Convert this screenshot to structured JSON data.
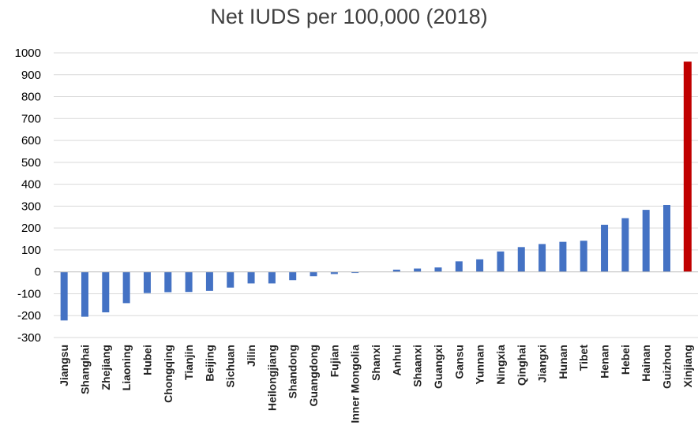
{
  "chart_data": {
    "type": "bar",
    "title": "Net IUDS per 100,000 (2018)",
    "xlabel": "",
    "ylabel": "",
    "ylim": [
      -300,
      1000
    ],
    "yticks": [
      1000,
      900,
      800,
      700,
      600,
      500,
      400,
      300,
      200,
      100,
      0,
      -100,
      -200,
      -300
    ],
    "grid": true,
    "legend": "none",
    "categories": [
      "Jiangsu",
      "Shanghai",
      "Zhejiang",
      "Liaoning",
      "Hubei",
      "Chongqing",
      "Tianjin",
      "Beijing",
      "Sichuan",
      "Jilin",
      "Heilongjiang",
      "Shandong",
      "Guangdong",
      "Fujian",
      "Inner Mongolia",
      "Shanxi",
      "Anhui",
      "Shaanxi",
      "Guangxi",
      "Gansu",
      "Yunnan",
      "Ningxia",
      "Qinghai",
      "Jiangxi",
      "Hunan",
      "Tibet",
      "Henan",
      "Hebei",
      "Hainan",
      "Guizhou",
      "Xinjiang"
    ],
    "values": [
      -222,
      -205,
      -185,
      -143,
      -97,
      -93,
      -92,
      -87,
      -72,
      -53,
      -53,
      -38,
      -20,
      -10,
      -5,
      0,
      10,
      15,
      20,
      48,
      57,
      93,
      113,
      127,
      137,
      142,
      215,
      245,
      283,
      305,
      960
    ],
    "colors": {
      "default": "#4472C4",
      "highlight": "#C00000"
    },
    "highlight_category": "Xinjiang"
  }
}
